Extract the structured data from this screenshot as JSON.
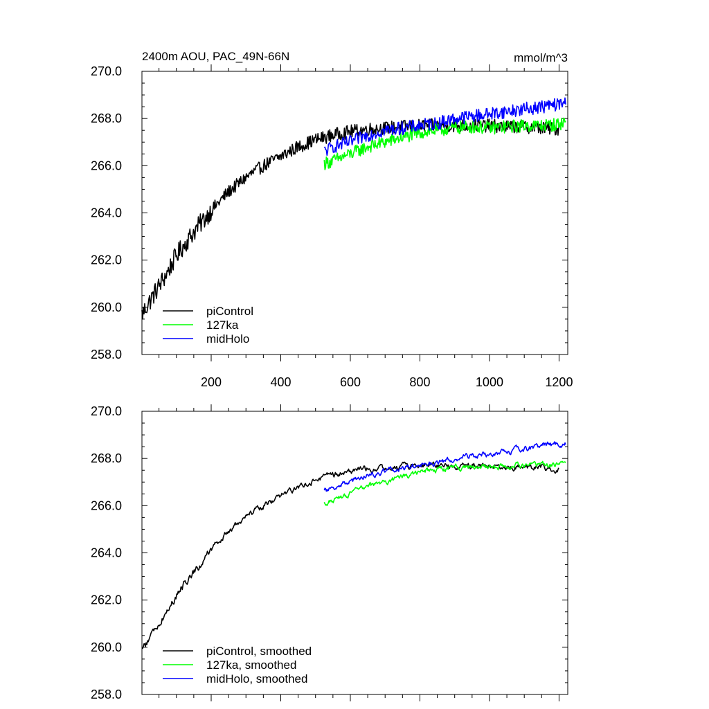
{
  "chart_data": [
    {
      "type": "line",
      "title_left": "2400m AOU, PAC_49N-66N",
      "title_right": "mmol/m^3",
      "xlim": [
        1,
        1225
      ],
      "ylim": [
        258,
        270
      ],
      "xticks": [
        200,
        400,
        600,
        800,
        1000,
        1200
      ],
      "xtick_labels": [
        "200",
        "400",
        "600",
        "800",
        "1000",
        "1200"
      ],
      "yticks": [
        258,
        260,
        262,
        264,
        266,
        268,
        270
      ],
      "ytick_labels": [
        "258.0",
        "260.0",
        "262.0",
        "264.0",
        "266.0",
        "268.0",
        "270.0"
      ],
      "legend_position": "bottom-left",
      "series": [
        {
          "name": "piControl",
          "color": "#000000",
          "x": [
            1,
            25,
            50,
            75,
            100,
            150,
            200,
            250,
            300,
            350,
            400,
            450,
            500,
            550,
            600,
            650,
            700,
            750,
            800,
            850,
            900,
            950,
            1000,
            1050,
            1100,
            1150,
            1200
          ],
          "y": [
            259.7,
            260.3,
            260.9,
            261.5,
            262.2,
            263.2,
            264.1,
            264.9,
            265.5,
            266.0,
            266.4,
            266.8,
            267.1,
            267.3,
            267.45,
            267.55,
            267.6,
            267.65,
            267.7,
            267.7,
            267.7,
            267.7,
            267.7,
            267.65,
            267.65,
            267.6,
            267.55
          ]
        },
        {
          "name": "127ka",
          "color": "#00ff00",
          "x": [
            525,
            550,
            600,
            650,
            700,
            750,
            800,
            850,
            900,
            950,
            1000,
            1050,
            1100,
            1150,
            1200,
            1220
          ],
          "y": [
            266.1,
            266.2,
            266.5,
            266.8,
            267.0,
            267.2,
            267.4,
            267.5,
            267.6,
            267.65,
            267.6,
            267.65,
            267.7,
            267.7,
            267.75,
            267.9
          ]
        },
        {
          "name": "midHolo",
          "color": "#0000ff",
          "x": [
            525,
            550,
            600,
            650,
            700,
            750,
            800,
            850,
            900,
            950,
            1000,
            1050,
            1100,
            1150,
            1200,
            1220
          ],
          "y": [
            266.6,
            266.8,
            267.0,
            267.3,
            267.5,
            267.6,
            267.7,
            267.8,
            268.0,
            268.1,
            268.2,
            268.3,
            268.4,
            268.5,
            268.6,
            268.7
          ]
        }
      ]
    },
    {
      "type": "line",
      "xlim": [
        1,
        1225
      ],
      "ylim": [
        258,
        270
      ],
      "yticks": [
        258,
        260,
        262,
        264,
        266,
        268,
        270
      ],
      "ytick_labels": [
        "258.0",
        "260.0",
        "262.0",
        "264.0",
        "266.0",
        "268.0",
        "270.0"
      ],
      "legend_position": "bottom-left",
      "series": [
        {
          "name": "piControl, smoothed",
          "color": "#000000",
          "x": [
            1,
            25,
            50,
            75,
            100,
            150,
            200,
            250,
            300,
            350,
            400,
            450,
            500,
            550,
            600,
            650,
            700,
            750,
            800,
            850,
            900,
            950,
            1000,
            1050,
            1100,
            1150,
            1200
          ],
          "y": [
            259.9,
            260.4,
            261.0,
            261.6,
            262.2,
            263.2,
            264.1,
            264.9,
            265.5,
            266.0,
            266.4,
            266.8,
            267.1,
            267.3,
            267.45,
            267.55,
            267.6,
            267.65,
            267.7,
            267.7,
            267.7,
            267.7,
            267.7,
            267.65,
            267.65,
            267.6,
            267.55
          ]
        },
        {
          "name": "127ka, smoothed",
          "color": "#00ff00",
          "x": [
            525,
            550,
            600,
            650,
            700,
            750,
            800,
            850,
            900,
            950,
            1000,
            1050,
            1100,
            1150,
            1200,
            1220
          ],
          "y": [
            266.1,
            266.2,
            266.5,
            266.8,
            267.0,
            267.2,
            267.4,
            267.5,
            267.6,
            267.65,
            267.6,
            267.65,
            267.7,
            267.7,
            267.75,
            267.9
          ]
        },
        {
          "name": "midHolo, smoothed",
          "color": "#0000ff",
          "x": [
            525,
            550,
            600,
            650,
            700,
            750,
            800,
            850,
            900,
            950,
            1000,
            1050,
            1100,
            1150,
            1200,
            1220
          ],
          "y": [
            266.6,
            266.8,
            267.0,
            267.3,
            267.5,
            267.6,
            267.7,
            267.8,
            268.0,
            268.1,
            268.2,
            268.3,
            268.4,
            268.5,
            268.6,
            268.7
          ]
        }
      ]
    }
  ]
}
